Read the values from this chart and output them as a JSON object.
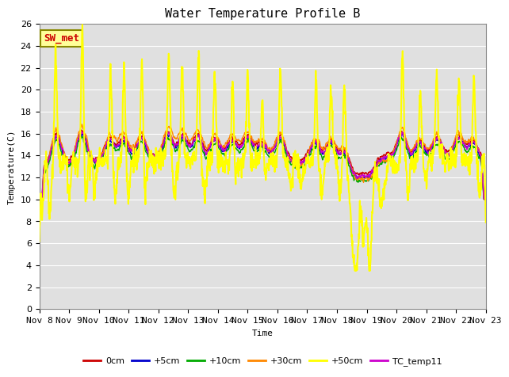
{
  "title": "Water Temperature Profile B",
  "xlabel": "Time",
  "ylabel": "Temperature(C)",
  "ylim": [
    0,
    26
  ],
  "yticks": [
    0,
    2,
    4,
    6,
    8,
    10,
    12,
    14,
    16,
    18,
    20,
    22,
    24,
    26
  ],
  "x_labels": [
    "Nov 8",
    "Nov 9",
    "Nov 10",
    "Nov 11",
    "Nov 12",
    "Nov 13",
    "Nov 14",
    "Nov 15",
    "Nov 16",
    "Nov 17",
    "Nov 18",
    "Nov 19",
    "Nov 20",
    "Nov 21",
    "Nov 22",
    "Nov 23"
  ],
  "series": {
    "0cm": {
      "color": "#cc0000",
      "lw": 1.0
    },
    "+5cm": {
      "color": "#0000cc",
      "lw": 1.0
    },
    "+10cm": {
      "color": "#00aa00",
      "lw": 1.0
    },
    "+30cm": {
      "color": "#ff8800",
      "lw": 1.0
    },
    "+50cm": {
      "color": "#ffff00",
      "lw": 1.5
    },
    "TC_temp11": {
      "color": "#cc00cc",
      "lw": 1.0
    }
  },
  "annotation_text": "SW_met",
  "annotation_color": "#cc0000",
  "annotation_bg": "#ffff99",
  "annotation_border": "#888800",
  "bg_color": "#ffffff",
  "plot_bg_color": "#e0e0e0",
  "grid_color": "#ffffff",
  "title_fontsize": 11,
  "axis_fontsize": 8,
  "legend_fontsize": 8
}
